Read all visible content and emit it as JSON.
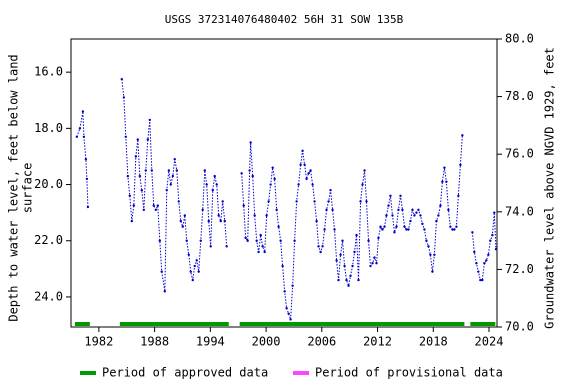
{
  "chart_data": {
    "type": "line",
    "title": "USGS 372314076480402 56H 31 SOW 135B",
    "y_label": [
      "Depth to water level, feet below land",
      "surface"
    ],
    "y2_label": "Groundwater level above NGVD 1929, feet",
    "color": "#0000cc",
    "xlim": [
      1979.0,
      2024.86
    ],
    "xticks": [
      1982,
      1988,
      1994,
      2000,
      2006,
      2012,
      2018,
      2024
    ],
    "ylim": [
      14.82,
      25.07
    ],
    "y_inverted": true,
    "yticks": [
      {
        "value": 16,
        "label": "16.0"
      },
      {
        "value": 18,
        "label": "18.0"
      },
      {
        "value": 20,
        "label": "20.0"
      },
      {
        "value": 22,
        "label": "22.0"
      },
      {
        "value": 24,
        "label": "24.0"
      }
    ],
    "y2lim": [
      70,
      80
    ],
    "y2ticks": [
      {
        "value": 70,
        "label": "70.0"
      },
      {
        "value": 72,
        "label": "72.0"
      },
      {
        "value": 74,
        "label": "74.0"
      },
      {
        "value": 76,
        "label": "76.0"
      },
      {
        "value": 78,
        "label": "78.0"
      },
      {
        "value": 80,
        "label": "80.0"
      }
    ],
    "x": [
      1979.63,
      1979.96,
      1980.28,
      1980.39,
      1980.6,
      1980.71,
      1980.82,
      null,
      1984.47,
      1984.69,
      1984.9,
      1985.12,
      1985.33,
      1985.55,
      1985.76,
      1985.98,
      1986.19,
      1986.41,
      1986.62,
      1986.84,
      1987.05,
      1987.27,
      1987.48,
      1987.7,
      1987.91,
      1988.13,
      1988.34,
      1988.56,
      1988.77,
      1989.1,
      1989.31,
      1989.53,
      1989.74,
      1989.96,
      1990.17,
      1990.39,
      1990.6,
      1990.82,
      1991.03,
      1991.25,
      1991.46,
      1991.68,
      1991.89,
      1992.11,
      1992.32,
      1992.54,
      1992.75,
      1992.97,
      1993.18,
      1993.4,
      1993.61,
      1993.83,
      1994.04,
      1994.26,
      1994.47,
      1994.69,
      1994.9,
      1995.12,
      1995.33,
      1995.55,
      1995.76,
      null,
      1997.37,
      1997.59,
      1997.8,
      1998.02,
      1998.23,
      1998.34,
      1998.56,
      1998.77,
      1998.99,
      1999.2,
      1999.42,
      1999.63,
      1999.85,
      2000.06,
      2000.28,
      2000.49,
      2000.71,
      2000.92,
      2001.14,
      2001.35,
      2001.57,
      2001.78,
      2002.0,
      2002.21,
      2002.43,
      2002.64,
      2002.86,
      2003.07,
      2003.29,
      2003.5,
      2003.72,
      2003.93,
      2004.15,
      2004.36,
      2004.58,
      2004.79,
      2005.01,
      2005.22,
      2005.44,
      2005.65,
      2005.87,
      2006.08,
      2006.3,
      2006.51,
      2006.73,
      2006.94,
      2007.16,
      2007.37,
      2007.59,
      2007.8,
      2008.02,
      2008.23,
      2008.45,
      2008.66,
      2008.88,
      2009.09,
      2009.31,
      2009.52,
      2009.74,
      2009.95,
      2010.17,
      2010.38,
      2010.6,
      2010.81,
      2011.03,
      2011.24,
      2011.46,
      2011.67,
      2011.89,
      2012.1,
      2012.32,
      2012.53,
      2012.75,
      2012.96,
      2013.18,
      2013.39,
      2013.61,
      2013.82,
      2014.04,
      2014.25,
      2014.47,
      2014.68,
      2014.9,
      2015.11,
      2015.33,
      2015.54,
      2015.76,
      2015.97,
      2016.19,
      2016.4,
      2016.62,
      2016.83,
      2017.05,
      2017.26,
      2017.48,
      2017.69,
      2017.91,
      2018.12,
      2018.34,
      2018.55,
      2018.77,
      2018.98,
      2019.2,
      2019.41,
      2019.63,
      2019.84,
      2020.06,
      2020.27,
      2020.49,
      2020.7,
      2020.92,
      2021.13,
      null,
      2022.21,
      2022.42,
      2022.64,
      2022.85,
      2023.07,
      2023.28,
      2023.5,
      2023.71,
      2023.93,
      2024.14,
      2024.36,
      2024.57,
      2024.75
    ],
    "values": [
      18.3,
      18.0,
      17.4,
      18.3,
      19.1,
      19.8,
      20.8,
      null,
      16.25,
      16.9,
      18.3,
      19.7,
      20.4,
      21.3,
      20.75,
      19.0,
      18.4,
      19.7,
      20.2,
      20.9,
      19.5,
      18.4,
      17.7,
      19.5,
      20.75,
      20.9,
      20.75,
      22.0,
      23.1,
      23.8,
      20.2,
      19.5,
      20.0,
      19.7,
      19.1,
      19.5,
      20.6,
      21.3,
      21.5,
      21.1,
      22.0,
      22.5,
      23.1,
      23.4,
      22.9,
      22.7,
      23.1,
      22.0,
      20.9,
      19.5,
      20.0,
      21.3,
      22.2,
      20.2,
      19.7,
      20.0,
      21.1,
      21.3,
      20.6,
      21.3,
      22.2,
      null,
      19.6,
      20.75,
      21.9,
      22.0,
      19.5,
      18.5,
      19.7,
      21.1,
      22.0,
      22.4,
      21.8,
      22.2,
      22.4,
      21.1,
      20.6,
      20.0,
      19.4,
      19.8,
      20.9,
      21.5,
      22.0,
      22.9,
      23.8,
      24.4,
      24.6,
      24.8,
      23.6,
      22.0,
      20.6,
      20.0,
      19.3,
      18.8,
      19.3,
      19.8,
      19.6,
      19.5,
      20.0,
      20.6,
      21.3,
      22.2,
      22.4,
      22.2,
      21.6,
      20.9,
      20.6,
      20.2,
      20.9,
      21.6,
      22.7,
      23.4,
      22.5,
      22.0,
      22.9,
      23.4,
      23.6,
      23.25,
      22.9,
      22.4,
      21.8,
      23.4,
      20.6,
      20.0,
      19.5,
      20.6,
      22.0,
      22.9,
      22.8,
      22.6,
      22.8,
      21.9,
      21.5,
      21.6,
      21.5,
      21.1,
      20.75,
      20.4,
      21.1,
      21.7,
      21.5,
      20.9,
      20.4,
      20.9,
      21.5,
      21.6,
      21.6,
      21.3,
      20.9,
      21.1,
      21.0,
      20.9,
      21.1,
      21.4,
      21.6,
      22.0,
      22.2,
      22.5,
      23.1,
      22.5,
      21.3,
      21.1,
      20.75,
      19.9,
      19.4,
      19.9,
      20.9,
      21.5,
      21.6,
      21.6,
      21.5,
      20.4,
      19.3,
      18.25,
      null,
      21.7,
      22.4,
      22.8,
      23.1,
      23.4,
      23.4,
      22.8,
      22.7,
      22.5,
      22.0,
      21.8,
      21.0,
      22.3
    ],
    "periods": [
      {
        "name": "Period of approved data",
        "color": "#009900",
        "ranges": [
          [
            1979.42,
            1981.03
          ],
          [
            1984.26,
            1995.98
          ],
          [
            1997.16,
            2021.35
          ],
          [
            2021.99,
            2024.68
          ]
        ]
      },
      {
        "name": "Period of provisional data",
        "color": "#ff44ff",
        "ranges": []
      }
    ]
  }
}
